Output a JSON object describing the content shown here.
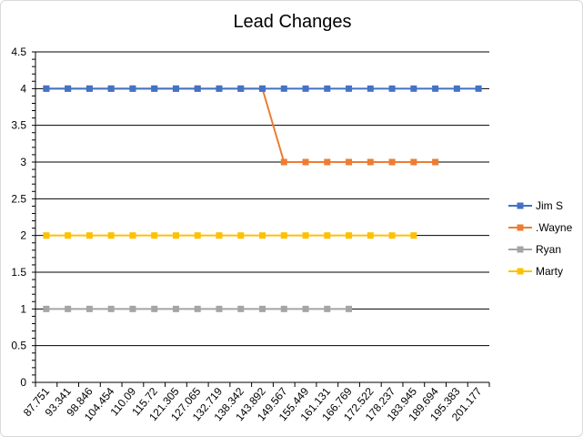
{
  "chart_data": {
    "type": "line",
    "title": "Lead Changes",
    "xlabel": "",
    "ylabel": "",
    "ylim": [
      0,
      4.5
    ],
    "yticks": [
      "0",
      "0.5",
      "1",
      "1.5",
      "2",
      "2.5",
      "3",
      "3.5",
      "4",
      "4.5"
    ],
    "categories": [
      "87.751",
      "93.341",
      "98.846",
      "104.454",
      "110.09",
      "115.72",
      "121.305",
      "127.065",
      "132.719",
      "138.342",
      "143.892",
      "149.567",
      "155.449",
      "161.131",
      "166.769",
      "172.522",
      "178.237",
      "183.945",
      "189.694",
      "195.383",
      "201.177"
    ],
    "grid": true,
    "legend_position": "right",
    "series": [
      {
        "name": "Jim S",
        "color": "#4472c4",
        "values": [
          4,
          4,
          4,
          4,
          4,
          4,
          4,
          4,
          4,
          4,
          4,
          4,
          4,
          4,
          4,
          4,
          4,
          4,
          4,
          4,
          4
        ]
      },
      {
        "name": ".Wayne",
        "color": "#ed7d31",
        "values": [
          4,
          4,
          4,
          4,
          4,
          4,
          4,
          4,
          4,
          4,
          4,
          3,
          3,
          3,
          3,
          3,
          3,
          3,
          3,
          null,
          null
        ]
      },
      {
        "name": "Ryan",
        "color": "#a5a5a5",
        "values": [
          1,
          1,
          1,
          1,
          1,
          1,
          1,
          1,
          1,
          1,
          1,
          1,
          1,
          1,
          1,
          null,
          null,
          null,
          null,
          null,
          null
        ]
      },
      {
        "name": "Marty",
        "color": "#ffc000",
        "values": [
          2,
          2,
          2,
          2,
          2,
          2,
          2,
          2,
          2,
          2,
          2,
          2,
          2,
          2,
          2,
          2,
          2,
          2,
          null,
          null,
          null
        ]
      }
    ]
  }
}
